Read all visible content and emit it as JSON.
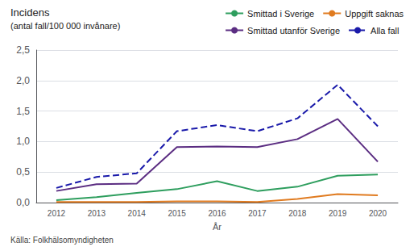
{
  "chart_data": {
    "type": "line",
    "title": "Incidens",
    "subtitle": "(antal fall/100 000 invånare)",
    "x_label": "År",
    "annotations": [
      "Källa: Folkhälsomyndigheten"
    ],
    "categories": [
      "2012",
      "2013",
      "2014",
      "2015",
      "2016",
      "2017",
      "2018",
      "2019",
      "2020"
    ],
    "series": [
      {
        "name": "Smittad i Sverige",
        "color": "#2e9e5e",
        "line_style": "solid",
        "values": [
          0.04,
          0.09,
          0.16,
          0.22,
          0.35,
          0.19,
          0.26,
          0.44,
          0.46
        ]
      },
      {
        "name": "Uppgift saknas",
        "color": "#e07b20",
        "line_style": "solid",
        "values": [
          0.01,
          0.01,
          0.01,
          0.02,
          0.02,
          0.01,
          0.06,
          0.14,
          0.12
        ]
      },
      {
        "name": "Smittad utanför Sverige",
        "color": "#5b2d82",
        "line_style": "solid",
        "values": [
          0.19,
          0.3,
          0.31,
          0.91,
          0.92,
          0.91,
          1.04,
          1.37,
          0.67
        ]
      },
      {
        "name": "Alla fall",
        "color": "#1a1aaa",
        "line_style": "dashed",
        "values": [
          0.24,
          0.42,
          0.48,
          1.17,
          1.27,
          1.17,
          1.38,
          1.93,
          1.25
        ]
      }
    ],
    "ylim": [
      0,
      2.5
    ],
    "yticks": [
      {
        "value": 0.0,
        "label": "0,0"
      },
      {
        "value": 0.5,
        "label": "0,5"
      },
      {
        "value": 1.0,
        "label": "1,0"
      },
      {
        "value": 1.5,
        "label": "1,5"
      },
      {
        "value": 2.0,
        "label": "2,0"
      },
      {
        "value": 2.5,
        "label": "2,5"
      }
    ],
    "grid": true,
    "legend": "top"
  }
}
